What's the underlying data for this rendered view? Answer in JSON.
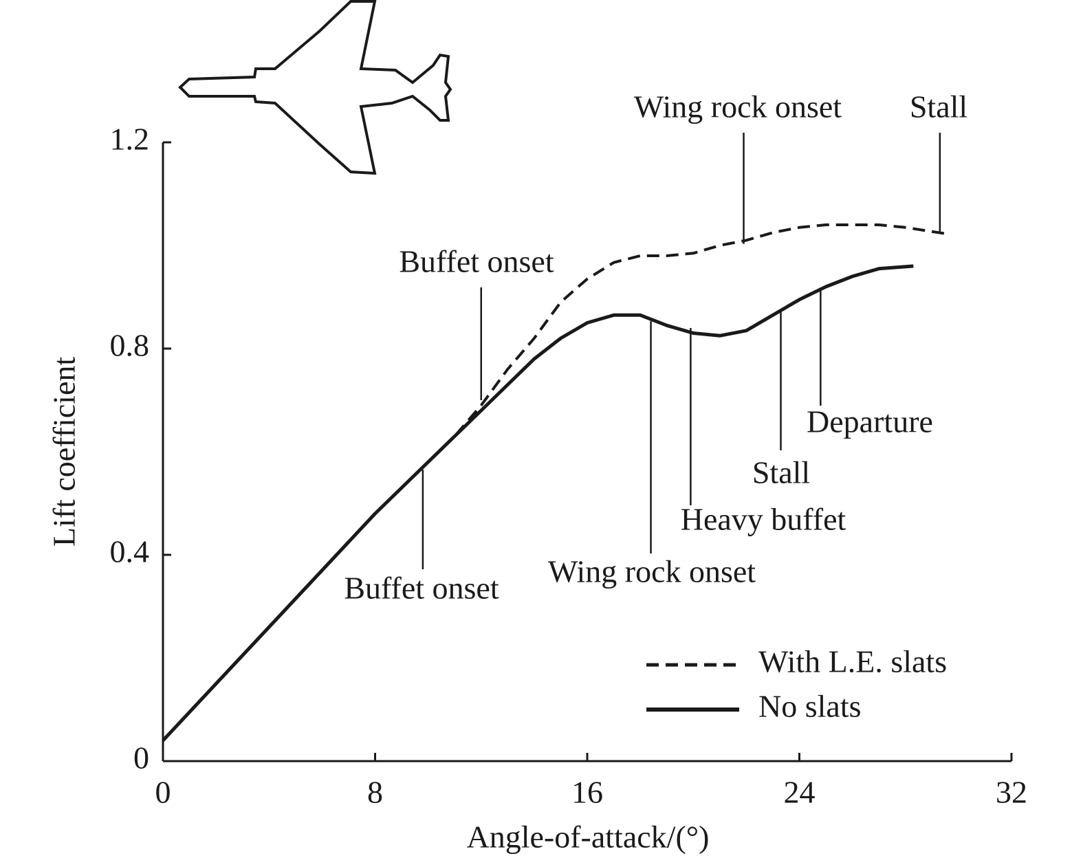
{
  "chart_data": {
    "type": "line",
    "xlabel": "Angle-of-attack/(°)",
    "ylabel": "Lift coefficient",
    "xlim": [
      0,
      32
    ],
    "xticks": [
      0,
      8,
      16,
      24,
      32
    ],
    "ylim": [
      0,
      1.2
    ],
    "yticks": [
      0,
      0.4,
      0.8,
      1.2
    ],
    "legend": "lower right",
    "series": [
      {
        "name": "With L.E. slats",
        "color": "#1a1a1a",
        "style": "dashed",
        "x": [
          0,
          2,
          4,
          6,
          8,
          10,
          11,
          12,
          13,
          14,
          15,
          16,
          17,
          18,
          19,
          20,
          21,
          22,
          23,
          24,
          25,
          26,
          27,
          28,
          29.5
        ],
        "values": [
          0.04,
          0.15,
          0.26,
          0.37,
          0.48,
          0.58,
          0.63,
          0.69,
          0.76,
          0.82,
          0.89,
          0.935,
          0.967,
          0.98,
          0.98,
          0.985,
          1.0,
          1.01,
          1.025,
          1.035,
          1.04,
          1.04,
          1.04,
          1.035,
          1.023
        ]
      },
      {
        "name": "No slats",
        "color": "#1a1a1a",
        "style": "solid",
        "x": [
          0,
          2,
          4,
          6,
          8,
          10,
          11,
          12,
          13,
          14,
          15,
          16,
          17,
          18,
          19,
          20,
          21,
          22,
          23,
          24,
          25,
          26,
          27,
          28.3
        ],
        "values": [
          0.04,
          0.15,
          0.26,
          0.37,
          0.48,
          0.58,
          0.63,
          0.68,
          0.73,
          0.78,
          0.82,
          0.85,
          0.865,
          0.865,
          0.845,
          0.83,
          0.825,
          0.835,
          0.865,
          0.895,
          0.92,
          0.94,
          0.955,
          0.96
        ]
      }
    ],
    "annotations": [
      {
        "text": "Buffet onset",
        "x": 9.8,
        "y": 0.565
      },
      {
        "text": "Wing rock onset",
        "x": 18.4,
        "y": 0.853
      },
      {
        "text": "Heavy buffet",
        "x": 19.9,
        "y": 0.84
      },
      {
        "text": "Stall",
        "x": 23.3,
        "y": 0.876
      },
      {
        "text": "Departure",
        "x": 24.8,
        "y": 0.913
      },
      {
        "text": "Buffet onset",
        "x": 12.0,
        "y": 0.7
      },
      {
        "text": "Wing rock onset",
        "x": 21.9,
        "y": 1.003
      },
      {
        "text": "Stall",
        "x": 29.3,
        "y": 1.025
      }
    ]
  }
}
